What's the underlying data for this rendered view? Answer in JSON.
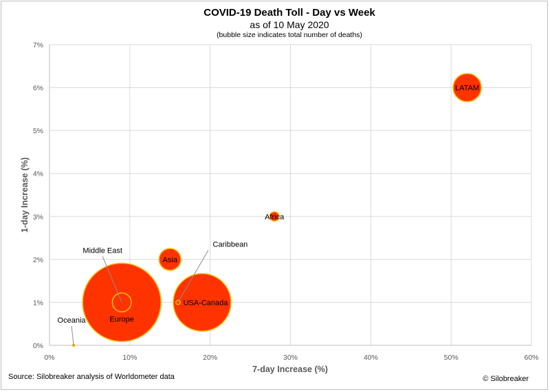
{
  "chart_data": {
    "type": "bubble",
    "title": "COVID-19 Death Toll - Day vs Week",
    "subtitle": "as of 10 May 2020",
    "note": "(bubble size indicates total number of deaths)",
    "xlabel": "7-day Increase (%)",
    "ylabel": "1-day Increase (%)",
    "xlim": [
      0,
      60
    ],
    "ylim": [
      0,
      7
    ],
    "x_ticks": [
      "0%",
      "10%",
      "20%",
      "30%",
      "40%",
      "50%",
      "60%"
    ],
    "y_ticks": [
      "0%",
      "1%",
      "2%",
      "3%",
      "4%",
      "5%",
      "6%",
      "7%"
    ],
    "grid": true,
    "colors": {
      "bubble_fill": "#ff3300",
      "bubble_edge": "#ffc000",
      "grid": "#d9d9d9"
    },
    "points": [
      {
        "label": "Europe",
        "x": 9,
        "y": 1,
        "size": 155000
      },
      {
        "label": "USA-Canada",
        "x": 19,
        "y": 1,
        "size": 84000
      },
      {
        "label": "LATAM",
        "x": 52,
        "y": 6,
        "size": 20000
      },
      {
        "label": "Asia",
        "x": 15,
        "y": 2,
        "size": 12000
      },
      {
        "label": "Africa",
        "x": 28,
        "y": 3,
        "size": 2200
      },
      {
        "label": "Middle East",
        "x": 9,
        "y": 1,
        "size": 9000
      },
      {
        "label": "Caribbean",
        "x": 16,
        "y": 1,
        "size": 450
      },
      {
        "label": "Oceania",
        "x": 3,
        "y": 0,
        "size": 120
      }
    ]
  },
  "footer": {
    "source": "Source: Silobreaker analysis of Worldometer data",
    "credit": "© Silobreaker"
  }
}
